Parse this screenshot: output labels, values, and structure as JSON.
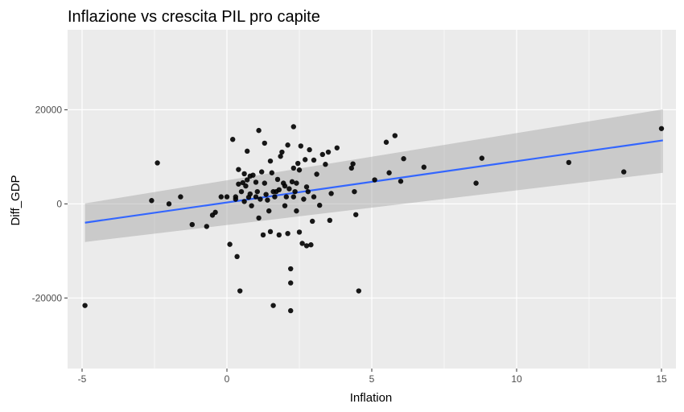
{
  "chart_data": {
    "type": "scatter",
    "title": "Inflazione vs crescita PIL pro capite",
    "xlabel": "Inflation",
    "ylabel": "Diff_GDP",
    "xlim": [
      -5.5,
      15.5
    ],
    "ylim": [
      -35000,
      37000
    ],
    "x_ticks": [
      -5,
      0,
      5,
      10,
      15
    ],
    "x_tick_labels": [
      "-5",
      "0",
      "5",
      "10",
      "15"
    ],
    "y_ticks": [
      -20000,
      0,
      20000
    ],
    "y_tick_labels": [
      "-20000",
      "0",
      "20000"
    ],
    "grid": true,
    "colors": {
      "panel": "#ebebeb",
      "grid": "#ffffff",
      "point": "#000000",
      "fit_line": "#3366ff",
      "ribbon": "#999999"
    },
    "points": [
      [
        -4.9,
        -21600
      ],
      [
        -2.6,
        700
      ],
      [
        -2.4,
        8700
      ],
      [
        -2.0,
        0
      ],
      [
        -1.6,
        1500
      ],
      [
        -1.2,
        -4400
      ],
      [
        -0.7,
        -4800
      ],
      [
        -0.5,
        -2400
      ],
      [
        -0.4,
        -1800
      ],
      [
        -0.2,
        1500
      ],
      [
        0.0,
        1500
      ],
      [
        0.1,
        -8600
      ],
      [
        0.2,
        13700
      ],
      [
        0.3,
        1500
      ],
      [
        0.3,
        1000
      ],
      [
        0.35,
        -11200
      ],
      [
        0.4,
        4200
      ],
      [
        0.4,
        7300
      ],
      [
        0.45,
        -18500
      ],
      [
        0.5,
        2600
      ],
      [
        0.55,
        4500
      ],
      [
        0.6,
        6400
      ],
      [
        0.6,
        500
      ],
      [
        0.65,
        3800
      ],
      [
        0.7,
        11200
      ],
      [
        0.7,
        5100
      ],
      [
        0.75,
        1400
      ],
      [
        0.8,
        5900
      ],
      [
        0.8,
        2100
      ],
      [
        0.85,
        -400
      ],
      [
        0.9,
        6100
      ],
      [
        1.0,
        4600
      ],
      [
        1.0,
        1500
      ],
      [
        1.05,
        2600
      ],
      [
        1.1,
        -3000
      ],
      [
        1.1,
        15600
      ],
      [
        1.15,
        1000
      ],
      [
        1.2,
        6800
      ],
      [
        1.25,
        -6600
      ],
      [
        1.3,
        12900
      ],
      [
        1.3,
        4400
      ],
      [
        1.35,
        2000
      ],
      [
        1.4,
        800
      ],
      [
        1.45,
        -1500
      ],
      [
        1.5,
        9100
      ],
      [
        1.5,
        -5900
      ],
      [
        1.55,
        6600
      ],
      [
        1.6,
        2600
      ],
      [
        1.6,
        -21600
      ],
      [
        1.65,
        1500
      ],
      [
        1.7,
        2600
      ],
      [
        1.75,
        5200
      ],
      [
        1.8,
        3000
      ],
      [
        1.8,
        -6600
      ],
      [
        1.85,
        10100
      ],
      [
        1.9,
        11000
      ],
      [
        1.95,
        4400
      ],
      [
        2.0,
        3800
      ],
      [
        2.0,
        -400
      ],
      [
        2.05,
        1500
      ],
      [
        2.1,
        12500
      ],
      [
        2.1,
        -6300
      ],
      [
        2.15,
        3200
      ],
      [
        2.2,
        -13800
      ],
      [
        2.2,
        -16800
      ],
      [
        2.2,
        -22700
      ],
      [
        2.25,
        4700
      ],
      [
        2.3,
        16400
      ],
      [
        2.3,
        7600
      ],
      [
        2.3,
        1500
      ],
      [
        2.35,
        2600
      ],
      [
        2.4,
        4400
      ],
      [
        2.4,
        -1500
      ],
      [
        2.45,
        8600
      ],
      [
        2.5,
        7200
      ],
      [
        2.5,
        -6000
      ],
      [
        2.55,
        12300
      ],
      [
        2.6,
        -8400
      ],
      [
        2.65,
        1000
      ],
      [
        2.7,
        9400
      ],
      [
        2.75,
        -8900
      ],
      [
        2.75,
        3600
      ],
      [
        2.8,
        2600
      ],
      [
        2.85,
        11500
      ],
      [
        2.9,
        -8700
      ],
      [
        2.95,
        -3700
      ],
      [
        3.0,
        9300
      ],
      [
        3.0,
        1500
      ],
      [
        3.1,
        6300
      ],
      [
        3.2,
        -300
      ],
      [
        3.3,
        10500
      ],
      [
        3.4,
        8400
      ],
      [
        3.5,
        11000
      ],
      [
        3.55,
        -3500
      ],
      [
        3.6,
        2200
      ],
      [
        3.8,
        11900
      ],
      [
        4.3,
        7600
      ],
      [
        4.35,
        8500
      ],
      [
        4.4,
        2600
      ],
      [
        4.45,
        -2300
      ],
      [
        4.55,
        -18500
      ],
      [
        5.1,
        5100
      ],
      [
        5.5,
        13100
      ],
      [
        5.6,
        6600
      ],
      [
        5.8,
        14500
      ],
      [
        6.0,
        4800
      ],
      [
        6.1,
        9600
      ],
      [
        6.8,
        7800
      ],
      [
        8.6,
        4400
      ],
      [
        8.8,
        9700
      ],
      [
        11.8,
        8800
      ],
      [
        13.7,
        6800
      ],
      [
        15.0,
        16000
      ]
    ],
    "fit": {
      "x": [
        -4.9,
        15.05
      ],
      "y": [
        -4000,
        13500
      ],
      "lower": [
        -8100,
        6600
      ],
      "upper": [
        100,
        20100
      ]
    }
  }
}
